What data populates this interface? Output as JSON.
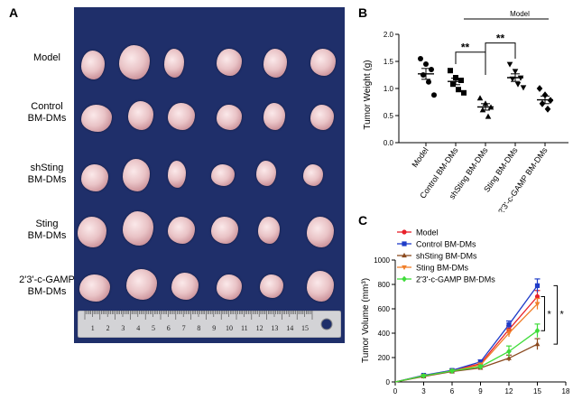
{
  "panels": {
    "a": "A",
    "b": "B",
    "c": "C"
  },
  "photo_rows": [
    {
      "label_line1": "Model",
      "label_line2": ""
    },
    {
      "label_line1": "Control",
      "label_line2": "BM-DMs"
    },
    {
      "label_line1": "shSting",
      "label_line2": "BM-DMs"
    },
    {
      "label_line1": "Sting",
      "label_line2": "BM-DMs"
    },
    {
      "label_line1": "2'3'-c-GAMP",
      "label_line2": "BM-DMs"
    }
  ],
  "ruler_numbers": [
    "1",
    "2",
    "3",
    "4",
    "5",
    "6",
    "7",
    "8",
    "9",
    "10",
    "11",
    "12",
    "13",
    "14",
    "15"
  ],
  "chart_data": [
    {
      "type": "scatter",
      "panel": "B",
      "ylabel": "Tumor Weight (g)",
      "ylim": [
        0,
        2.0
      ],
      "yticks": [
        "0.0",
        "0.5",
        "1.0",
        "1.5",
        "2.0"
      ],
      "categories": [
        "Model",
        "Control BM-DMs",
        "shSting BM-DMs",
        "Sting BM-DMs",
        "2'3'-c-GAMP BM-DMs"
      ],
      "markers": [
        "circle",
        "square",
        "triangle-up",
        "triangle-down",
        "diamond"
      ],
      "points": [
        [
          1.55,
          1.45,
          1.35,
          1.25,
          1.12,
          0.88
        ],
        [
          1.33,
          1.2,
          1.15,
          1.08,
          0.98,
          0.92
        ],
        [
          0.82,
          0.72,
          0.65,
          0.6,
          0.48
        ],
        [
          1.45,
          1.32,
          1.2,
          1.18,
          1.08,
          1.02
        ],
        [
          1.0,
          0.88,
          0.78,
          0.72,
          0.62
        ]
      ],
      "means": [
        1.27,
        1.13,
        0.66,
        1.2,
        0.79
      ],
      "sem": [
        0.1,
        0.06,
        0.06,
        0.07,
        0.07
      ],
      "annotations": {
        "bracket_label": "Model",
        "sig1": "**",
        "sig2": "**"
      }
    },
    {
      "type": "line",
      "panel": "C",
      "xlabel": "",
      "ylabel": "Tumor Volume (mm³)",
      "xlim": [
        0,
        18
      ],
      "ylim": [
        0,
        1000
      ],
      "xticks": [
        "0",
        "3",
        "6",
        "9",
        "12",
        "15",
        "18"
      ],
      "yticks": [
        "0",
        "200",
        "400",
        "600",
        "800",
        "1000"
      ],
      "x": [
        3,
        6,
        9,
        12,
        15
      ],
      "series": [
        {
          "name": "Model",
          "color": "#e8202a",
          "marker": "circle",
          "values": [
            50,
            95,
            150,
            430,
            700
          ],
          "err": [
            8,
            10,
            15,
            30,
            50
          ]
        },
        {
          "name": "Control BM-DMs",
          "color": "#1f3cc8",
          "marker": "square",
          "values": [
            55,
            95,
            165,
            470,
            790
          ],
          "err": [
            8,
            10,
            15,
            30,
            55
          ]
        },
        {
          "name": "shSting BM-DMs",
          "color": "#8b4a1f",
          "marker": "triangle-up",
          "values": [
            45,
            85,
            115,
            195,
            310
          ],
          "err": [
            8,
            10,
            12,
            25,
            45
          ]
        },
        {
          "name": "Sting BM-DMs",
          "color": "#f07f2a",
          "marker": "triangle-down",
          "values": [
            50,
            90,
            140,
            400,
            640
          ],
          "err": [
            8,
            10,
            15,
            30,
            45
          ]
        },
        {
          "name": "2'3'-c-GAMP BM-DMs",
          "color": "#3fdc3a",
          "marker": "diamond",
          "values": [
            50,
            90,
            125,
            250,
            420
          ],
          "err": [
            8,
            10,
            12,
            45,
            55
          ]
        }
      ],
      "annotations": {
        "sig1": "*",
        "sig2": "*"
      }
    }
  ]
}
